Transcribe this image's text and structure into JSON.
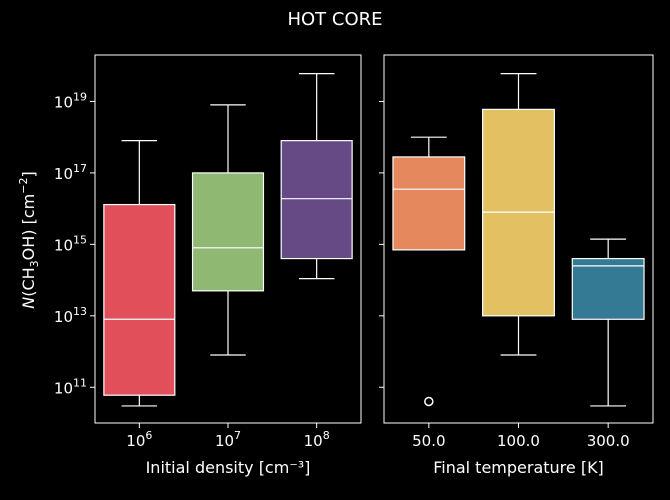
{
  "title": "HOT CORE",
  "y_axis": {
    "label_prefix": "N",
    "label_body": "(CH",
    "label_sub": "3",
    "label_mid": "OH) [cm",
    "label_sup": "−2",
    "label_end": "]",
    "scale": "log",
    "ylim_exponent": [
      10.0,
      20.3
    ],
    "tick_base": "10",
    "tick_exponents": [
      "11",
      "13",
      "15",
      "17",
      "19"
    ]
  },
  "chart_data": [
    {
      "type": "box",
      "xlabel": "Initial density [cm⁻³]",
      "categories": [
        "10^6",
        "10^7",
        "10^8"
      ],
      "category_labels": [
        {
          "base": "10",
          "exp": "6"
        },
        {
          "base": "10",
          "exp": "7"
        },
        {
          "base": "10",
          "exp": "8"
        }
      ],
      "boxes": [
        {
          "category": "10^6",
          "color": "#e04f5a",
          "whisker_low": 30000000000.0,
          "q1": 60000000000.0,
          "median": 8000000000000.0,
          "q3": 1.3e+16,
          "whisker_high": 8e+17,
          "outliers": []
        },
        {
          "category": "10^7",
          "color": "#8fb873",
          "whisker_low": 800000000000.0,
          "q1": 50000000000000.0,
          "median": 800000000000000.0,
          "q3": 1e+17,
          "whisker_high": 8e+18,
          "outliers": []
        },
        {
          "category": "10^8",
          "color": "#654a86",
          "whisker_low": 110000000000000.0,
          "q1": 400000000000000.0,
          "median": 1.9e+16,
          "q3": 8e+17,
          "whisker_high": 6e+19,
          "outliers": []
        }
      ]
    },
    {
      "type": "box",
      "xlabel": "Final temperature [K]",
      "categories": [
        "50.0",
        "100.0",
        "300.0"
      ],
      "boxes": [
        {
          "category": "50.0",
          "color": "#e5885e",
          "whisker_low": 700000000000000.0,
          "q1": 700000000000000.0,
          "median": 3.5e+16,
          "q3": 2.8e+17,
          "whisker_high": 1e+18,
          "outliers": [
            40000000000.0
          ]
        },
        {
          "category": "100.0",
          "color": "#e3c062",
          "whisker_low": 800000000000.0,
          "q1": 10000000000000.0,
          "median": 8000000000000000.0,
          "q3": 6e+18,
          "whisker_high": 6e+19,
          "outliers": []
        },
        {
          "category": "300.0",
          "color": "#357a94",
          "whisker_low": 30000000000.0,
          "q1": 8000000000000.0,
          "median": 250000000000000.0,
          "q3": 400000000000000.0,
          "whisker_high": 1400000000000000.0,
          "outliers": []
        }
      ]
    }
  ]
}
